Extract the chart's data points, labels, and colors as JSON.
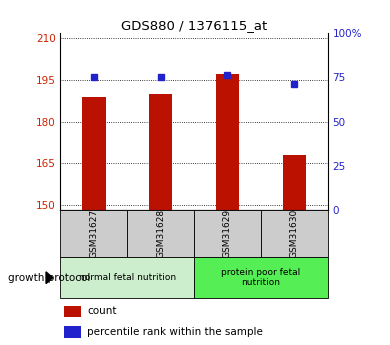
{
  "title": "GDS880 / 1376115_at",
  "samples": [
    "GSM31627",
    "GSM31628",
    "GSM31629",
    "GSM31630"
  ],
  "bar_values": [
    189,
    190,
    197,
    168
  ],
  "dot_values": [
    75,
    75,
    76,
    71
  ],
  "bar_color": "#bb1100",
  "dot_color": "#2222cc",
  "ylim_left": [
    148,
    212
  ],
  "ylim_right": [
    0,
    100
  ],
  "left_ticks": [
    150,
    165,
    180,
    195,
    210
  ],
  "right_ticks": [
    0,
    25,
    50,
    75,
    100
  ],
  "right_tick_labels": [
    "0",
    "25",
    "50",
    "75",
    "100%"
  ],
  "groups": [
    {
      "label": "normal fetal nutrition",
      "samples": [
        0,
        1
      ],
      "color": "#cceecc"
    },
    {
      "label": "protein poor fetal\nnutrition",
      "samples": [
        2,
        3
      ],
      "color": "#55ee55"
    }
  ],
  "growth_protocol_label": "growth protocol",
  "legend_count_label": "count",
  "legend_pct_label": "percentile rank within the sample",
  "bar_width": 0.35,
  "background_color": "#ffffff",
  "tick_label_color_left": "#cc2200",
  "tick_label_color_right": "#2222cc"
}
